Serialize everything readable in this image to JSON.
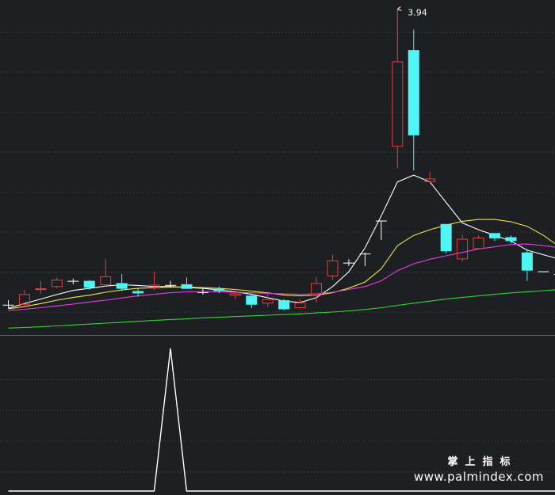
{
  "chart_data": [
    {
      "type": "candlestick",
      "panel": "price",
      "annotations": [
        {
          "label": "3.94",
          "x_index": 24,
          "value": 3.94
        }
      ],
      "ylim": [
        2.58,
        3.98
      ],
      "grid": true,
      "colors": {
        "up": "#e0413a",
        "down": "#4ff5f5",
        "flat": "#ffffff"
      },
      "candles": [
        {
          "o": 2.64,
          "h": 2.66,
          "l": 2.625,
          "c": 2.64
        },
        {
          "o": 2.64,
          "h": 2.705,
          "l": 2.632,
          "c": 2.687
        },
        {
          "o": 2.705,
          "h": 2.745,
          "l": 2.69,
          "c": 2.712
        },
        {
          "o": 2.718,
          "h": 2.76,
          "l": 2.712,
          "c": 2.75
        },
        {
          "o": 2.745,
          "h": 2.755,
          "l": 2.73,
          "c": 2.745
        },
        {
          "o": 2.745,
          "h": 2.75,
          "l": 2.705,
          "c": 2.715
        },
        {
          "o": 2.726,
          "h": 2.84,
          "l": 2.72,
          "c": 2.765
        },
        {
          "o": 2.735,
          "h": 2.775,
          "l": 2.7,
          "c": 2.71
        },
        {
          "o": 2.7,
          "h": 2.715,
          "l": 2.675,
          "c": 2.69
        },
        {
          "o": 2.716,
          "h": 2.785,
          "l": 2.705,
          "c": 2.728
        },
        {
          "o": 2.727,
          "h": 2.745,
          "l": 2.715,
          "c": 2.727
        },
        {
          "o": 2.73,
          "h": 2.76,
          "l": 2.71,
          "c": 2.71
        },
        {
          "o": 2.695,
          "h": 2.71,
          "l": 2.685,
          "c": 2.695
        },
        {
          "o": 2.71,
          "h": 2.72,
          "l": 2.69,
          "c": 2.7
        },
        {
          "o": 2.68,
          "h": 2.71,
          "l": 2.665,
          "c": 2.69
        },
        {
          "o": 2.68,
          "h": 2.69,
          "l": 2.625,
          "c": 2.64
        },
        {
          "o": 2.645,
          "h": 2.69,
          "l": 2.63,
          "c": 2.665
        },
        {
          "o": 2.66,
          "h": 2.665,
          "l": 2.615,
          "c": 2.62
        },
        {
          "o": 2.625,
          "h": 2.665,
          "l": 2.62,
          "c": 2.65
        },
        {
          "o": 2.68,
          "h": 2.76,
          "l": 2.65,
          "c": 2.735
        },
        {
          "o": 2.765,
          "h": 2.86,
          "l": 2.75,
          "c": 2.835
        },
        {
          "o": 2.825,
          "h": 2.84,
          "l": 2.81,
          "c": 2.825
        },
        {
          "o": 2.865,
          "h": 2.87,
          "l": 2.81,
          "c": 2.865
        },
        {
          "o": 3.01,
          "h": 3.01,
          "l": 2.925,
          "c": 3.01
        },
        {
          "o": 3.335,
          "h": 3.94,
          "l": 3.24,
          "c": 3.71
        },
        {
          "o": 3.76,
          "h": 3.85,
          "l": 3.23,
          "c": 3.385
        },
        {
          "o": 3.18,
          "h": 3.225,
          "l": 3.175,
          "c": 3.195
        },
        {
          "o": 2.995,
          "h": 2.995,
          "l": 2.865,
          "c": 2.875
        },
        {
          "o": 2.84,
          "h": 2.95,
          "l": 2.83,
          "c": 2.93
        },
        {
          "o": 2.885,
          "h": 2.945,
          "l": 2.89,
          "c": 2.935
        },
        {
          "o": 2.955,
          "h": 2.95,
          "l": 2.92,
          "c": 2.932
        },
        {
          "o": 2.937,
          "h": 2.945,
          "l": 2.91,
          "c": 2.92
        },
        {
          "o": 2.87,
          "h": 2.885,
          "l": 2.745,
          "c": 2.79
        },
        {
          "o": 2.787,
          "h": 2.787,
          "l": 2.787,
          "c": 2.787
        },
        {
          "o": 2.775,
          "h": 2.785,
          "l": 2.76,
          "c": 2.775
        },
        {
          "o": 2.77,
          "h": 2.79,
          "l": 2.75,
          "c": 2.775
        }
      ],
      "ma_series": [
        {
          "color": "#ffffff",
          "values": [
            2.625,
            2.645,
            2.665,
            2.685,
            2.703,
            2.712,
            2.722,
            2.728,
            2.725,
            2.72,
            2.72,
            2.716,
            2.712,
            2.705,
            2.697,
            2.686,
            2.671,
            2.656,
            2.65,
            2.671,
            2.72,
            2.785,
            2.89,
            3.03,
            3.18,
            3.21,
            3.18,
            3.09,
            3.0,
            2.97,
            2.945,
            2.92,
            2.88,
            2.86,
            2.84,
            2.82
          ]
        },
        {
          "color": "#f0e83c",
          "values": [
            2.622,
            2.632,
            2.645,
            2.66,
            2.672,
            2.682,
            2.695,
            2.705,
            2.712,
            2.715,
            2.718,
            2.718,
            2.715,
            2.712,
            2.707,
            2.7,
            2.692,
            2.683,
            2.679,
            2.682,
            2.693,
            2.713,
            2.74,
            2.798,
            2.9,
            2.945,
            2.97,
            2.99,
            3.007,
            3.015,
            3.015,
            3.005,
            2.985,
            2.945,
            2.895,
            2.845
          ]
        },
        {
          "color": "#e040e0",
          "values": [
            2.615,
            2.62,
            2.627,
            2.635,
            2.643,
            2.652,
            2.66,
            2.67,
            2.679,
            2.686,
            2.693,
            2.697,
            2.698,
            2.697,
            2.695,
            2.693,
            2.69,
            2.688,
            2.686,
            2.688,
            2.695,
            2.707,
            2.72,
            2.745,
            2.79,
            2.82,
            2.84,
            2.855,
            2.87,
            2.885,
            2.895,
            2.905,
            2.907,
            2.9,
            2.89,
            2.88
          ]
        },
        {
          "color": "#2ed82e",
          "values": [
            2.537,
            2.54,
            2.543,
            2.547,
            2.551,
            2.555,
            2.559,
            2.563,
            2.567,
            2.571,
            2.575,
            2.578,
            2.582,
            2.585,
            2.588,
            2.591,
            2.594,
            2.597,
            2.6,
            2.604,
            2.608,
            2.613,
            2.619,
            2.627,
            2.637,
            2.647,
            2.656,
            2.665,
            2.672,
            2.679,
            2.686,
            2.692,
            2.697,
            2.702,
            2.707,
            2.712
          ]
        }
      ]
    },
    {
      "type": "line",
      "panel": "indicator",
      "color": "#ffffff",
      "ylim": [
        0,
        1
      ],
      "values": [
        0,
        0,
        0,
        0,
        0,
        0,
        0,
        0,
        0,
        0,
        1,
        0,
        0,
        0,
        0,
        0,
        0,
        0,
        0,
        0,
        0,
        0,
        0,
        0,
        0,
        0,
        0,
        0,
        0,
        0,
        0,
        0,
        0,
        0,
        0,
        0
      ]
    }
  ],
  "watermark": {
    "title": "掌上指标",
    "url": "www.palmindex.com"
  }
}
